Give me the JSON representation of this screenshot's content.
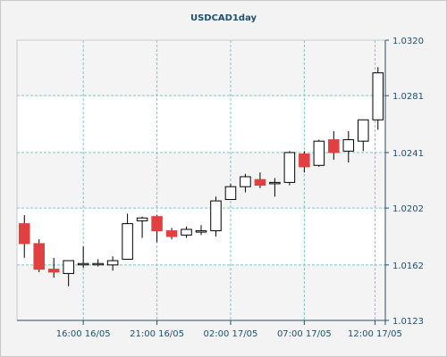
{
  "chart_data": {
    "type": "candlestick",
    "title": "USDCAD1day",
    "xlabel": "",
    "ylabel": "",
    "ylim": [
      1.0123,
      1.032
    ],
    "y_ticks": [
      "1.0123",
      "1.0162",
      "1.0202",
      "1.0241",
      "1.0281",
      "1.0320"
    ],
    "x_ticks": [
      "16:00 16/05",
      "21:00 16/05",
      "02:00 17/05",
      "07:00 17/05",
      "12:00 17/05"
    ],
    "grid": true,
    "colors": {
      "up": "#ffffff",
      "down": "#e04040",
      "outline": "#000000",
      "grid": "#7fc4cc",
      "axis": "#1f4f6e"
    },
    "candles": [
      {
        "o": 1.0191,
        "h": 1.0197,
        "l": 1.0167,
        "c": 1.0177
      },
      {
        "o": 1.0177,
        "h": 1.018,
        "l": 1.0157,
        "c": 1.0159
      },
      {
        "o": 1.0159,
        "h": 1.0167,
        "l": 1.0153,
        "c": 1.0157
      },
      {
        "o": 1.0156,
        "h": 1.0165,
        "l": 1.0147,
        "c": 1.0165
      },
      {
        "o": 1.0163,
        "h": 1.0175,
        "l": 1.016,
        "c": 1.0163
      },
      {
        "o": 1.0163,
        "h": 1.0166,
        "l": 1.0161,
        "c": 1.0163
      },
      {
        "o": 1.0162,
        "h": 1.0168,
        "l": 1.0158,
        "c": 1.0165
      },
      {
        "o": 1.0166,
        "h": 1.0198,
        "l": 1.0166,
        "c": 1.0191
      },
      {
        "o": 1.0193,
        "h": 1.0196,
        "l": 1.0181,
        "c": 1.0195
      },
      {
        "o": 1.0196,
        "h": 1.0197,
        "l": 1.0178,
        "c": 1.0186
      },
      {
        "o": 1.0186,
        "h": 1.0188,
        "l": 1.018,
        "c": 1.0182
      },
      {
        "o": 1.0183,
        "h": 1.0189,
        "l": 1.0181,
        "c": 1.0187
      },
      {
        "o": 1.0186,
        "h": 1.019,
        "l": 1.0183,
        "c": 1.0186
      },
      {
        "o": 1.0186,
        "h": 1.021,
        "l": 1.0182,
        "c": 1.0207
      },
      {
        "o": 1.0208,
        "h": 1.0219,
        "l": 1.0208,
        "c": 1.0217
      },
      {
        "o": 1.0217,
        "h": 1.0226,
        "l": 1.0213,
        "c": 1.0224
      },
      {
        "o": 1.0222,
        "h": 1.0227,
        "l": 1.0216,
        "c": 1.0218
      },
      {
        "o": 1.022,
        "h": 1.0223,
        "l": 1.021,
        "c": 1.022
      },
      {
        "o": 1.022,
        "h": 1.0242,
        "l": 1.0218,
        "c": 1.0241
      },
      {
        "o": 1.024,
        "h": 1.0242,
        "l": 1.0227,
        "c": 1.0231
      },
      {
        "o": 1.0232,
        "h": 1.025,
        "l": 1.0231,
        "c": 1.0249
      },
      {
        "o": 1.025,
        "h": 1.0256,
        "l": 1.0236,
        "c": 1.0241
      },
      {
        "o": 1.0242,
        "h": 1.0256,
        "l": 1.0234,
        "c": 1.025
      },
      {
        "o": 1.0249,
        "h": 1.0264,
        "l": 1.0242,
        "c": 1.0264
      },
      {
        "o": 1.0264,
        "h": 1.0301,
        "l": 1.0257,
        "c": 1.0297
      }
    ]
  }
}
